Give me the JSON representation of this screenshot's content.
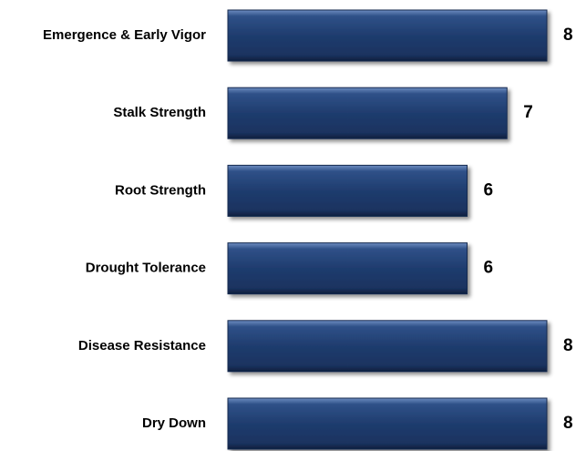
{
  "chart_data": {
    "type": "bar",
    "orientation": "horizontal",
    "categories": [
      "Emergence & Early Vigor",
      "Stalk Strength",
      "Root Strength",
      "Drought Tolerance",
      "Disease Resistance",
      "Dry Down"
    ],
    "values": [
      8,
      7,
      6,
      6,
      8,
      8
    ],
    "color": "#1f3c6e"
  }
}
